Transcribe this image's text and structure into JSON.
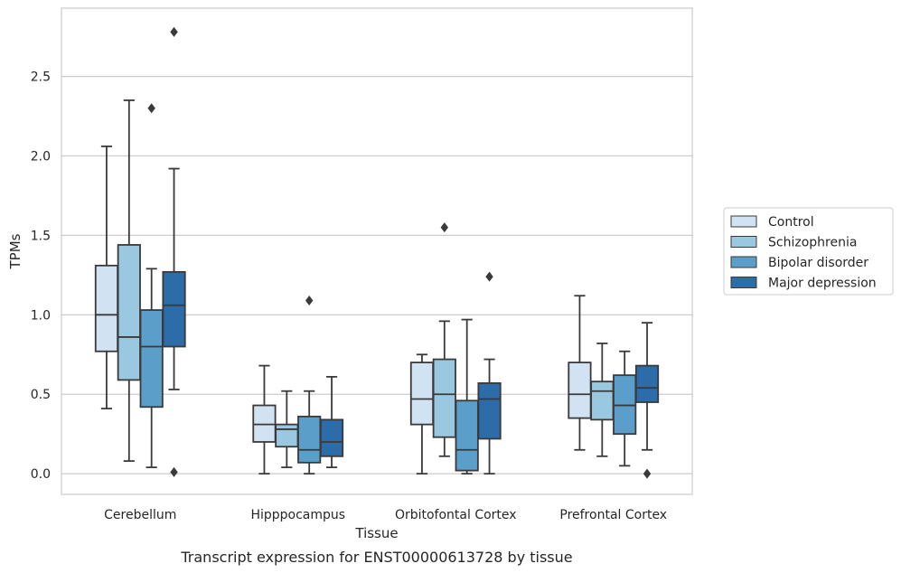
{
  "chart_data": {
    "type": "box",
    "title": "",
    "caption": "Transcript expression for ENST00000613728 by tissue",
    "xlabel": "Tissue",
    "ylabel": "TPMs",
    "ylim": [
      -0.13,
      2.93
    ],
    "yticks": [
      "0.0",
      "0.5",
      "1.0",
      "1.5",
      "2.0",
      "2.5"
    ],
    "grid": "horizontal",
    "legend_position": "right",
    "categories": [
      "Cerebellum",
      "Hipppocampus",
      "Orbitofontal Cortex",
      "Prefrontal Cortex"
    ],
    "series": [
      {
        "name": "Control",
        "color": "#d1e2f2",
        "boxes": [
          {
            "low": 0.41,
            "q1": 0.77,
            "median": 1.0,
            "q3": 1.31,
            "high": 2.06,
            "outliers": []
          },
          {
            "low": 0.0,
            "q1": 0.2,
            "median": 0.31,
            "q3": 0.43,
            "high": 0.68,
            "outliers": []
          },
          {
            "low": 0.0,
            "q1": 0.31,
            "median": 0.47,
            "q3": 0.7,
            "high": 0.75,
            "outliers": []
          },
          {
            "low": 0.15,
            "q1": 0.35,
            "median": 0.5,
            "q3": 0.7,
            "high": 1.12,
            "outliers": []
          }
        ]
      },
      {
        "name": "Schizophrenia",
        "color": "#9ac8e0",
        "boxes": [
          {
            "low": 0.08,
            "q1": 0.59,
            "median": 0.86,
            "q3": 1.44,
            "high": 2.35,
            "outliers": []
          },
          {
            "low": 0.04,
            "q1": 0.17,
            "median": 0.28,
            "q3": 0.31,
            "high": 0.52,
            "outliers": []
          },
          {
            "low": 0.11,
            "q1": 0.23,
            "median": 0.5,
            "q3": 0.72,
            "high": 0.96,
            "outliers": [
              1.55
            ]
          },
          {
            "low": 0.11,
            "q1": 0.34,
            "median": 0.52,
            "q3": 0.58,
            "high": 0.82,
            "outliers": []
          }
        ]
      },
      {
        "name": "Bipolar disorder",
        "color": "#5a9ec9",
        "boxes": [
          {
            "low": 0.04,
            "q1": 0.42,
            "median": 0.8,
            "q3": 1.03,
            "high": 1.29,
            "outliers": [
              2.3
            ]
          },
          {
            "low": 0.0,
            "q1": 0.07,
            "median": 0.15,
            "q3": 0.36,
            "high": 0.52,
            "outliers": [
              1.09
            ]
          },
          {
            "low": 0.0,
            "q1": 0.02,
            "median": 0.15,
            "q3": 0.46,
            "high": 0.97,
            "outliers": []
          },
          {
            "low": 0.05,
            "q1": 0.25,
            "median": 0.43,
            "q3": 0.62,
            "high": 0.77,
            "outliers": []
          }
        ]
      },
      {
        "name": "Major depression",
        "color": "#2b6ca9",
        "boxes": [
          {
            "low": 0.53,
            "q1": 0.8,
            "median": 1.06,
            "q3": 1.27,
            "high": 1.92,
            "outliers": [
              2.78,
              0.01
            ]
          },
          {
            "low": 0.04,
            "q1": 0.11,
            "median": 0.2,
            "q3": 0.34,
            "high": 0.61,
            "outliers": []
          },
          {
            "low": 0.0,
            "q1": 0.22,
            "median": 0.47,
            "q3": 0.57,
            "high": 0.72,
            "outliers": [
              1.24
            ]
          },
          {
            "low": 0.15,
            "q1": 0.45,
            "median": 0.54,
            "q3": 0.68,
            "high": 0.95,
            "outliers": [
              0.0
            ]
          }
        ]
      }
    ]
  }
}
